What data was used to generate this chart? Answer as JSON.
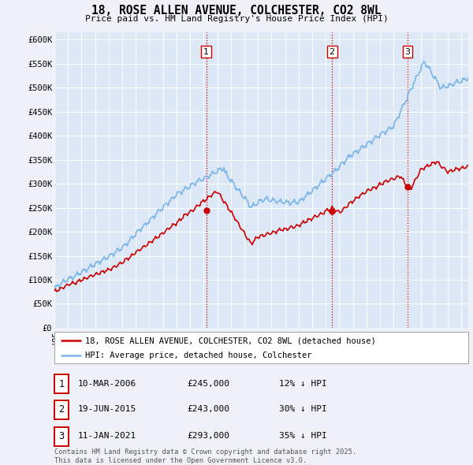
{
  "title": "18, ROSE ALLEN AVENUE, COLCHESTER, CO2 8WL",
  "subtitle": "Price paid vs. HM Land Registry's House Price Index (HPI)",
  "background_color": "#eef2f8",
  "plot_bg_color": "#dce8f5",
  "ylabel_ticks": [
    "£0",
    "£50K",
    "£100K",
    "£150K",
    "£200K",
    "£250K",
    "£300K",
    "£350K",
    "£400K",
    "£450K",
    "£500K",
    "£550K",
    "£600K"
  ],
  "ytick_values": [
    0,
    50000,
    100000,
    150000,
    200000,
    250000,
    300000,
    350000,
    400000,
    450000,
    500000,
    550000,
    600000
  ],
  "ylim": [
    0,
    615000
  ],
  "xlim_start": 1995.0,
  "xlim_end": 2025.5,
  "legend_line1": "18, ROSE ALLEN AVENUE, COLCHESTER, CO2 8WL (detached house)",
  "legend_line2": "HPI: Average price, detached house, Colchester",
  "legend_line1_color": "#cc0000",
  "legend_line2_color": "#7ab4e8",
  "footer": "Contains HM Land Registry data © Crown copyright and database right 2025.\nThis data is licensed under the Open Government Licence v3.0.",
  "sale_markers": [
    {
      "num": 1,
      "date": "10-MAR-2006",
      "price": "£245,000",
      "hpi": "12% ↓ HPI",
      "year": 2006.19
    },
    {
      "num": 2,
      "date": "19-JUN-2015",
      "price": "£243,000",
      "hpi": "30% ↓ HPI",
      "year": 2015.46
    },
    {
      "num": 3,
      "date": "11-JAN-2021",
      "price": "£293,000",
      "hpi": "35% ↓ HPI",
      "year": 2021.03
    }
  ],
  "vline_color": "#cc0000",
  "hpi_color": "#7ab4e8",
  "price_color": "#cc0000",
  "hpi_linewidth": 1.2,
  "price_linewidth": 1.2,
  "grid_color": "#ffffff",
  "marker_box_color": "#cc0000"
}
